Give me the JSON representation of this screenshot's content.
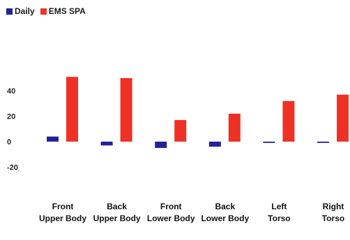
{
  "chart_data": {
    "type": "bar",
    "categories": [
      [
        "Front",
        "Upper Body"
      ],
      [
        "Back",
        "Upper Body"
      ],
      [
        "Front",
        "Lower Body"
      ],
      [
        "Back",
        "Lower Body"
      ],
      [
        "Left",
        "Torso"
      ],
      [
        "Right",
        "Torso"
      ]
    ],
    "series": [
      {
        "name": "Daily",
        "color": "#22229a",
        "values": [
          4,
          -3,
          -5,
          -4,
          -1,
          -1
        ]
      },
      {
        "name": "EMS SPA",
        "color": "#ee3124",
        "values": [
          51,
          50,
          17,
          22,
          32,
          37
        ]
      }
    ],
    "ylim": [
      -20,
      60
    ],
    "yticks": [
      -20,
      0,
      20,
      40
    ],
    "grid": false,
    "legend": "top-left"
  }
}
